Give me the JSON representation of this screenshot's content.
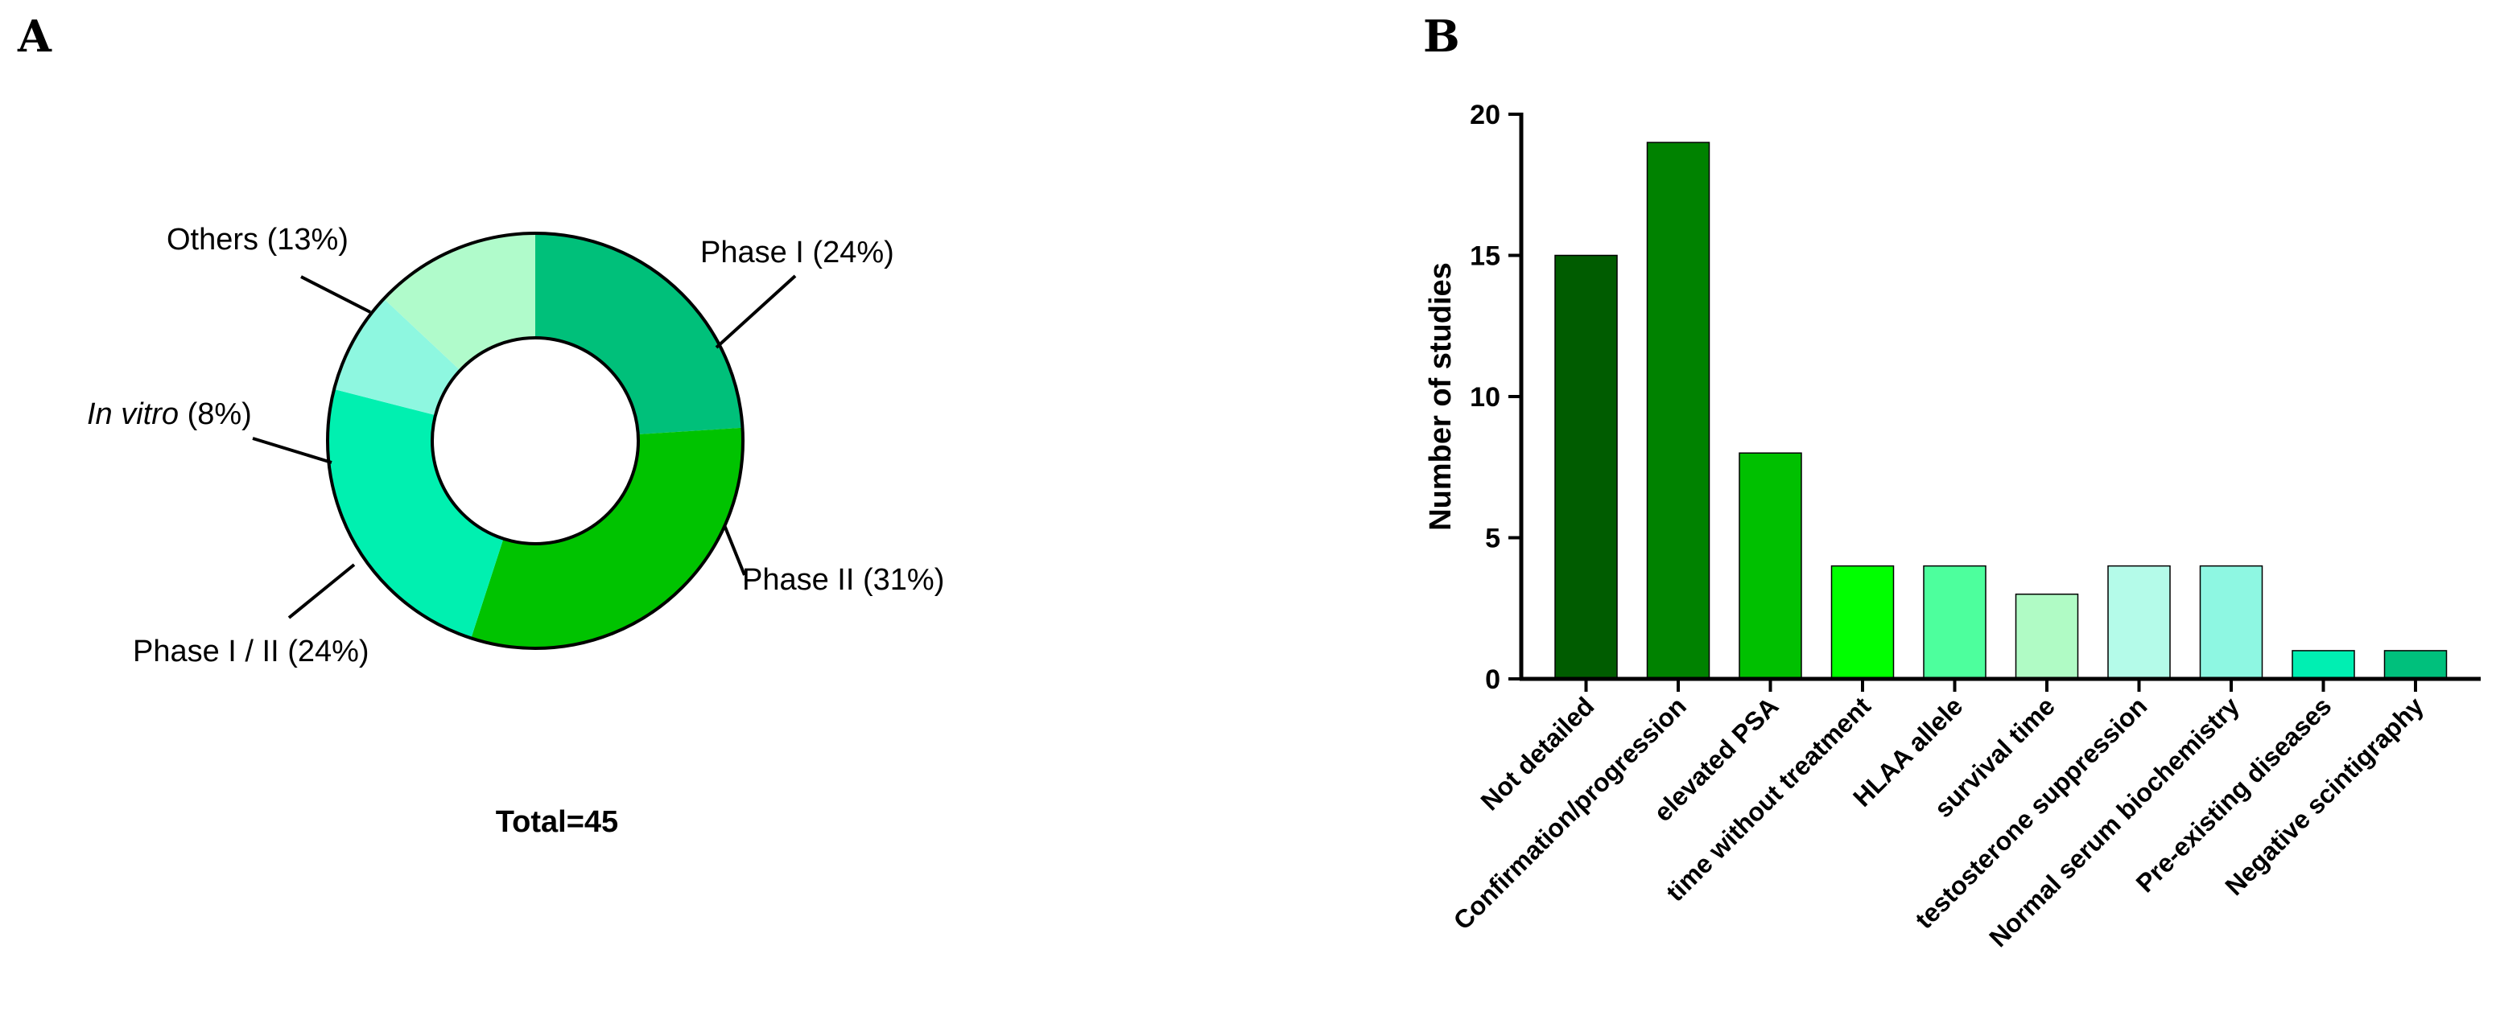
{
  "panel_a": {
    "letter": "A",
    "total": "Total=45"
  },
  "panel_b": {
    "letter": "B"
  },
  "chart_data": [
    {
      "type": "pie",
      "variant": "donut",
      "title": "",
      "slices": [
        {
          "label": "Phase I",
          "percent": 24,
          "text": "Phase I (24%)",
          "color": "#00c07a"
        },
        {
          "label": "Phase II",
          "percent": 31,
          "text": "Phase II (31%)",
          "color": "#00c300"
        },
        {
          "label": "Phase I / II",
          "percent": 24,
          "text": "Phase I / II (24%)",
          "color": "#00f0b0"
        },
        {
          "label": "In vitro",
          "percent": 8,
          "label_italic": "In  vitro",
          "label_suffix": " (8%)",
          "color": "#8ef7e0"
        },
        {
          "label": "Others",
          "percent": 13,
          "text": "Others (13%)",
          "color": "#b0fbcb"
        }
      ],
      "total_text": "Total=45"
    },
    {
      "type": "bar",
      "title": "",
      "xlabel": "",
      "ylabel": "Number of studies",
      "ylim": [
        0,
        20
      ],
      "yticks": [
        "0",
        "5",
        "10",
        "15",
        "20"
      ],
      "categories": [
        "Not detailed",
        "Confirmation/progression",
        "elevated PSA",
        "time without treatment",
        "HLAA allele",
        "survival time",
        "testosterone suppression",
        "Normal serum biochemistry",
        "Pre-existing diseases",
        "Negative scintigraphy"
      ],
      "values": [
        15,
        19,
        8,
        4,
        4,
        3,
        4,
        4,
        1,
        1
      ],
      "colors": [
        "#005c00",
        "#008200",
        "#00c000",
        "#00ff00",
        "#4dff9d",
        "#b0fbc5",
        "#b4fbe9",
        "#8ef7e2",
        "#00efb2",
        "#00c07c"
      ]
    }
  ]
}
